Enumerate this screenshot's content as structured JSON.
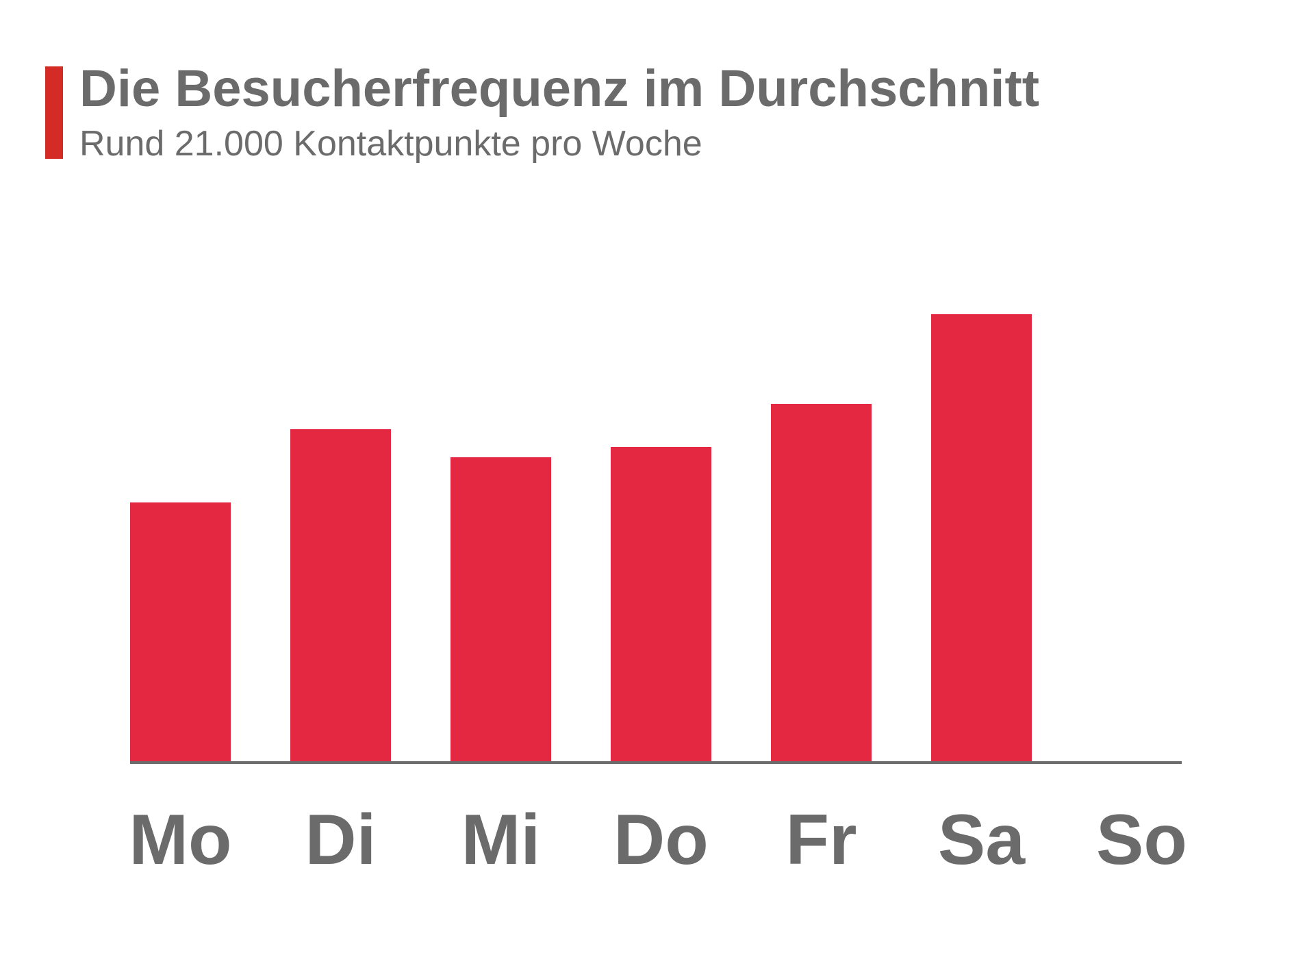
{
  "header": {
    "title": "Die Besucherfrequenz im Durchschnitt",
    "subtitle": "Rund 21.000 Kontaktpunkte pro Woche"
  },
  "colors": {
    "accent": "#d42b27",
    "bar": "#e52841",
    "axis": "#6b6b6b",
    "text": "#6b6b6b"
  },
  "chart_data": {
    "type": "bar",
    "title": "Die Besucherfrequenz im Durchschnitt",
    "subtitle": "Rund 21.000 Kontaktpunkte pro Woche",
    "categories": [
      "Mo",
      "Di",
      "Mi",
      "Do",
      "Fr",
      "Sa",
      "So"
    ],
    "values": [
      378,
      485,
      444,
      459,
      522,
      653,
      0
    ],
    "xlabel": "",
    "ylabel": "",
    "ylim": [
      0,
      800
    ],
    "grid": false,
    "legend": "none",
    "y_axis_shown": false
  }
}
